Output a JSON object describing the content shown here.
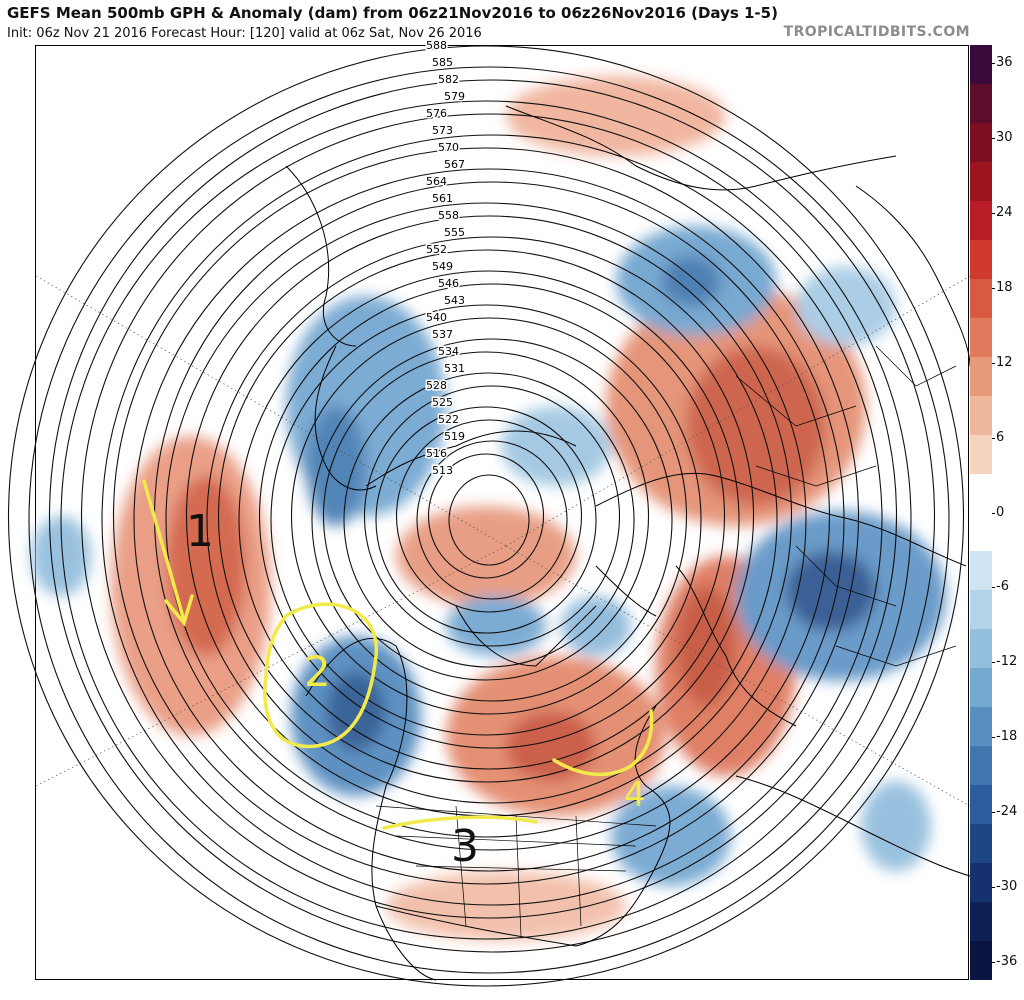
{
  "header": {
    "title": "GEFS Mean 500mb GPH & Anomaly (dam) from 06z21Nov2016 to 06z26Nov2016 (Days 1-5)",
    "subtitle": "Init: 06z Nov 21 2016   Forecast Hour: [120]   valid at 06z Sat, Nov 26 2016",
    "brand": "TROPICALTIDBITS.COM"
  },
  "colorbar": {
    "labels": [
      "36",
      "30",
      "24",
      "18",
      "12",
      "6",
      "0",
      "-6",
      "-12",
      "-18",
      "-24",
      "-30",
      "-36"
    ],
    "colors": [
      "#3a0a3a",
      "#5e0c2c",
      "#7e0f22",
      "#9c1420",
      "#b81c24",
      "#cf3a2c",
      "#d85a42",
      "#e07a5c",
      "#e79a7a",
      "#efb89c",
      "#f6d4c0",
      "#ffffff",
      "#ffffff",
      "#cfe4f0",
      "#b4d3e8",
      "#94bfdc",
      "#74a9d0",
      "#568fc0",
      "#3f76b0",
      "#2c5c9c",
      "#1e4686",
      "#16326e",
      "#0e2056",
      "#0a1440"
    ]
  },
  "contour_labels": [
    "588",
    "585",
    "582",
    "579",
    "576",
    "573",
    "570",
    "567",
    "564",
    "561",
    "558",
    "555",
    "552",
    "549",
    "546",
    "543",
    "540",
    "537",
    "534",
    "531",
    "528",
    "525",
    "522",
    "519",
    "516",
    "513"
  ],
  "annotations": [
    "1",
    "2",
    "3",
    "4"
  ],
  "colors": {
    "warm_anomaly": "#d9603f",
    "cold_anomaly": "#3c7fbf",
    "highlight": "#f2ea4a"
  }
}
